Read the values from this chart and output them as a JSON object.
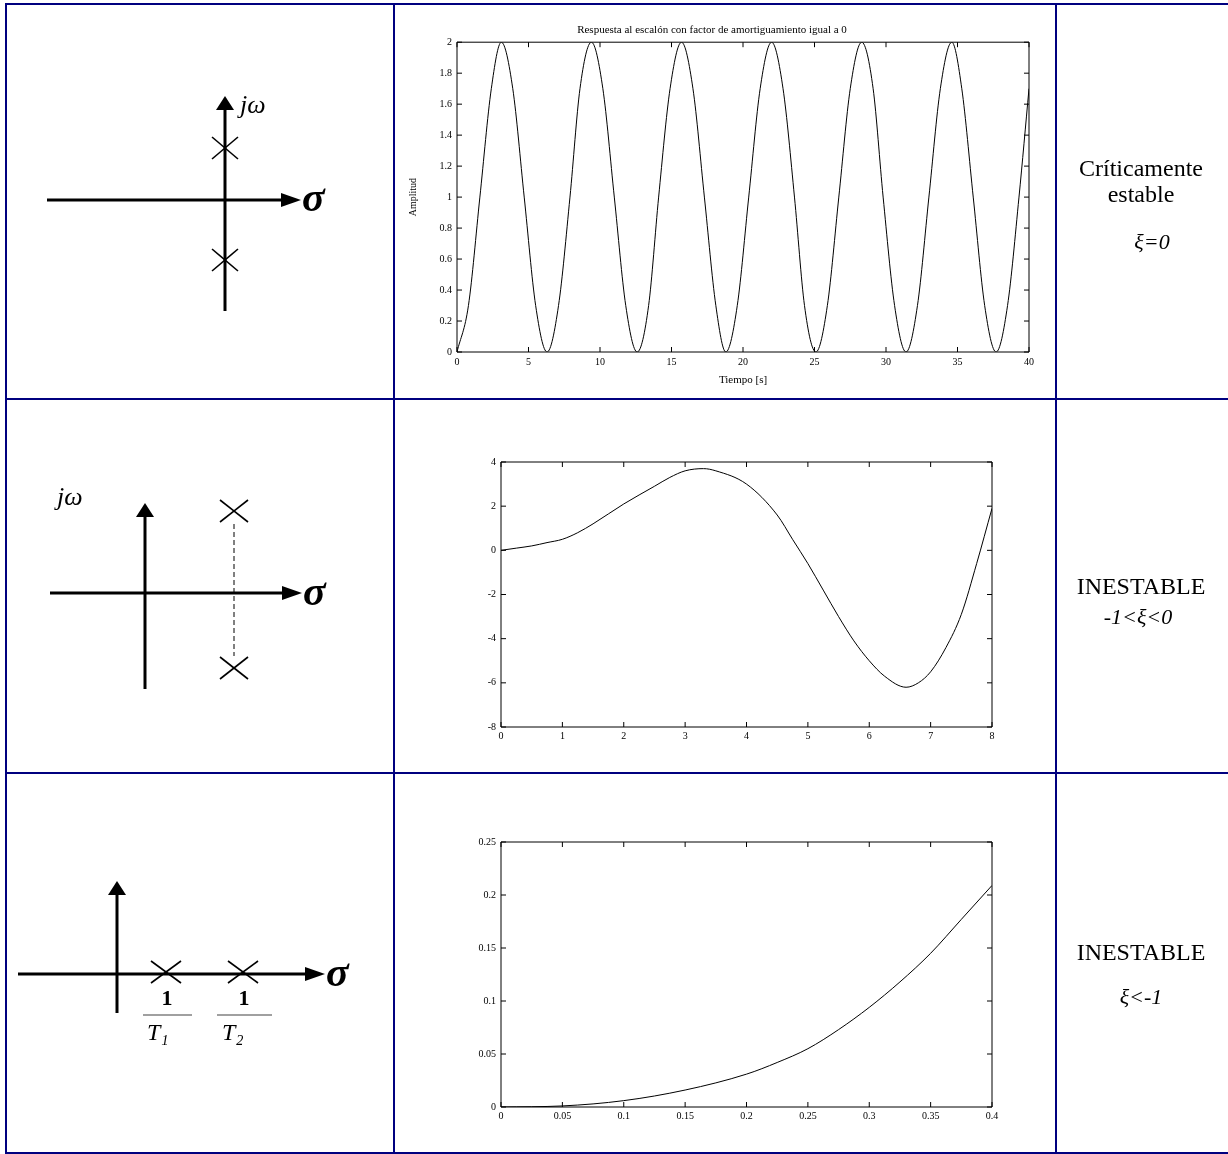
{
  "chart_data": [
    {
      "type": "other",
      "annotations": [
        "jω",
        "σ"
      ]
    },
    {
      "type": "line",
      "title": "Respuesta al escalón con factor de amortiguamiento igual a 0",
      "xlabel": "Tiempo [s]",
      "ylabel": "Amplitud",
      "color": "#000000",
      "x": [
        0,
        0.8,
        1.6,
        2.4,
        3.1,
        3.9,
        4.7,
        5.5,
        6.3,
        7.1,
        7.9,
        8.6,
        9.4,
        10.2,
        11,
        11.8,
        12.6,
        13.4,
        14.1,
        14.9,
        15.7,
        16.5,
        17.3,
        18.1,
        18.8,
        19.6,
        20.4,
        21.2,
        22,
        22.8,
        23.6,
        24.3,
        25.1,
        25.9,
        26.7,
        27.5,
        28.3,
        29.1,
        29.8,
        30.6,
        31.4,
        32.2,
        33,
        33.8,
        34.6,
        35.3,
        36.1,
        36.9,
        37.7,
        38.5,
        39.3,
        40
      ],
      "values": [
        0,
        0.3,
        1,
        1.7,
        2,
        1.7,
        1,
        0.3,
        0,
        0.3,
        1,
        1.7,
        2,
        1.7,
        1,
        0.3,
        0,
        0.3,
        1,
        1.7,
        2,
        1.7,
        1,
        0.3,
        0,
        0.3,
        1,
        1.7,
        2,
        1.7,
        1,
        0.3,
        0,
        0.3,
        1,
        1.7,
        2,
        1.7,
        1,
        0.3,
        0,
        0.3,
        1,
        1.7,
        2,
        1.7,
        1,
        0.3,
        0,
        0.3,
        1,
        1.7
      ],
      "xlim": [
        0,
        40
      ],
      "xticks": [
        0,
        5,
        10,
        15,
        20,
        25,
        30,
        35,
        40
      ],
      "ylim": [
        0,
        2
      ],
      "yticks": [
        0,
        0.2,
        0.4,
        0.6,
        0.8,
        1,
        1.2,
        1.4,
        1.6,
        1.8,
        2
      ]
    },
    {
      "type": "other",
      "annotations": [
        "Críticamente estable",
        "ξ=0"
      ]
    },
    {
      "type": "other",
      "annotations": [
        "jω",
        "σ"
      ]
    },
    {
      "type": "line",
      "color": "#000000",
      "x": [
        0,
        0.25,
        0.5,
        0.75,
        1,
        1.25,
        1.5,
        2,
        2.5,
        2.75,
        3,
        3.3,
        3.5,
        4,
        4.5,
        4.75,
        5,
        5.25,
        5.5,
        5.75,
        6,
        6.25,
        6.6,
        6.8,
        7,
        7.25,
        7.5,
        7.75,
        8
      ],
      "values": [
        0,
        0.1,
        0.2,
        0.35,
        0.5,
        0.8,
        1.2,
        2.1,
        2.9,
        3.3,
        3.6,
        3.7,
        3.6,
        3,
        1.6,
        0.5,
        -0.6,
        -1.8,
        -3,
        -4.1,
        -5,
        -5.7,
        -6.2,
        -6,
        -5.5,
        -4.4,
        -2.9,
        -0.6,
        1.9
      ],
      "xlim": [
        0,
        8
      ],
      "xticks": [
        0,
        1,
        2,
        3,
        4,
        5,
        6,
        7,
        8
      ],
      "ylim": [
        -8,
        4
      ],
      "yticks": [
        -8,
        -6,
        -4,
        -2,
        0,
        2,
        4
      ]
    },
    {
      "type": "other",
      "annotations": [
        "INESTABLE",
        "-1<ξ<0"
      ]
    },
    {
      "type": "other",
      "annotations": [
        "σ",
        "1",
        "T₁",
        "1",
        "T₂"
      ]
    },
    {
      "type": "line",
      "color": "#000000",
      "x": [
        0,
        0.05,
        0.1,
        0.15,
        0.2,
        0.225,
        0.25,
        0.275,
        0.3,
        0.325,
        0.35,
        0.375,
        0.4
      ],
      "values": [
        0,
        0.001,
        0.006,
        0.016,
        0.031,
        0.042,
        0.055,
        0.073,
        0.094,
        0.118,
        0.145,
        0.177,
        0.209
      ],
      "xlim": [
        0,
        0.4
      ],
      "xticks": [
        0,
        0.05,
        0.1,
        0.15,
        0.2,
        0.25,
        0.3,
        0.35,
        0.4
      ],
      "ylim": [
        0,
        0.25
      ],
      "yticks": [
        0,
        0.05,
        0.1,
        0.15,
        0.2,
        0.25
      ]
    },
    {
      "type": "other",
      "annotations": [
        "INESTABLE",
        "ξ<-1"
      ]
    }
  ]
}
